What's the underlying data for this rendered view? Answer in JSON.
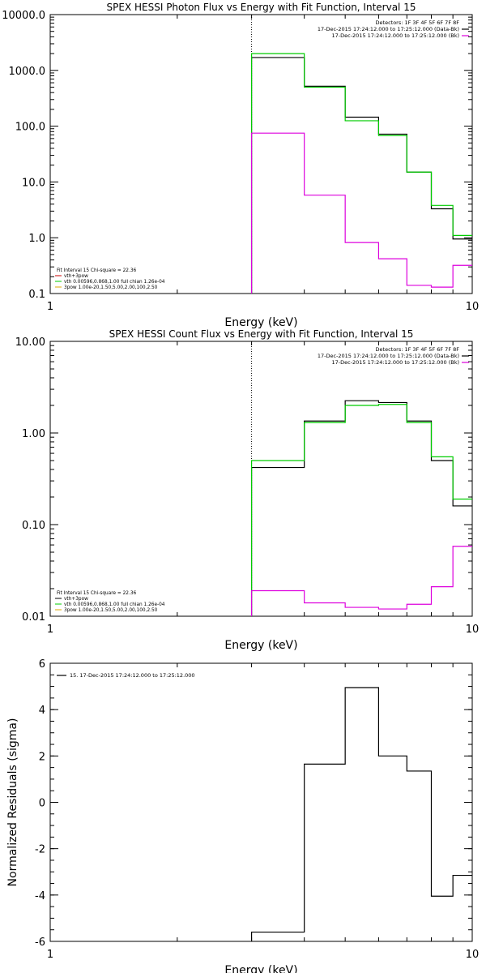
{
  "chart_data": [
    {
      "type": "line",
      "step": true,
      "title": "SPEX HESSI Photon Flux vs Energy with Fit Function, Interval 15",
      "xlabel": "Energy (keV)",
      "ylabel": "",
      "xscale": "log",
      "yscale": "log",
      "xlim": [
        1,
        10
      ],
      "ylim": [
        0.1,
        10000
      ],
      "xticks": [
        1,
        10
      ],
      "xtick_labels": [
        "1",
        "10"
      ],
      "yticks": [
        0.1,
        1,
        10,
        100,
        1000,
        10000
      ],
      "ytick_labels": [
        "0.1",
        "1.0",
        "10.0",
        "100.0",
        "1000.0",
        "10000.0"
      ],
      "marker_line_x": 3,
      "legend_position": "top-right",
      "legend": [
        "Detectors: 1F 3F 4F 5F 6F 7F 8F",
        "17-Dec-2015 17:24:12.000 to 17:25:12.000 (Data-Bk)",
        "17-Dec-2015 17:24:12.000 to 17:25:12.000 (Bk)"
      ],
      "fit_text_position": "bottom-left",
      "fit_text": [
        "Fit Interval 15   Chi-square = 22.36",
        "vth+3pow",
        "vth 0.00596,0.868,1.00   full chian 1.26e-04",
        "3pow 1.00e-20,1.50,5.00,2.00,100,2.50"
      ],
      "fit_text_colors": [
        "#000000",
        "#cc0000",
        "#00cc00",
        "#ddaa00"
      ],
      "bin_edges": [
        3,
        4,
        5,
        6,
        7,
        8,
        9,
        10
      ],
      "series": [
        {
          "name": "17-Dec-2015 17:24:12.000 to 17:25:12.000 (Data-Bk)",
          "color": "#000000",
          "values": [
            1700,
            520,
            145,
            72,
            15,
            3.3,
            0.95
          ]
        },
        {
          "color": "#00cc00",
          "values": [
            2000,
            500,
            125,
            68,
            15,
            3.8,
            1.1
          ]
        },
        {
          "name": "17-Dec-2015 17:24:12.000 to 17:25:12.000 (Bk)",
          "color": "#dd00dd",
          "values": [
            75,
            5.8,
            0.82,
            0.42,
            0.14,
            0.13,
            0.32
          ]
        }
      ]
    },
    {
      "type": "line",
      "step": true,
      "title": "SPEX HESSI Count Flux vs Energy with Fit Function, Interval 15",
      "xlabel": "Energy (keV)",
      "ylabel": "",
      "xscale": "log",
      "yscale": "log",
      "xlim": [
        1,
        10
      ],
      "ylim": [
        0.01,
        10
      ],
      "xticks": [
        1,
        10
      ],
      "xtick_labels": [
        "1",
        "10"
      ],
      "yticks": [
        0.01,
        0.1,
        1,
        10
      ],
      "ytick_labels": [
        "0.01",
        "0.10",
        "1.00",
        "10.00"
      ],
      "marker_line_x": 3,
      "legend_position": "top-right",
      "legend": [
        "Detectors: 1F 3F 4F 5F 6F 7F 8F",
        "17-Dec-2015 17:24:12.000 to 17:25:12.000 (Data-Bk)",
        "17-Dec-2015 17:24:12.000 to 17:25:12.000 (Bk)"
      ],
      "fit_text_position": "bottom-left",
      "fit_text": [
        "Fit Interval 15   Chi-square = 22.36",
        "vth+3pow",
        "vth 0.00596,0.868,1.00   full chian 1.26e-04",
        "3pow 1.00e-20,1.50,5.00,2.00,100,2.50"
      ],
      "fit_text_colors": [
        "#000000",
        "#000000",
        "#00cc00",
        "#ddaa00"
      ],
      "bin_edges": [
        3,
        4,
        5,
        6,
        7,
        8,
        9,
        10
      ],
      "series": [
        {
          "name": "17-Dec-2015 17:24:12.000 to 17:25:12.000 (Data-Bk)",
          "color": "#000000",
          "values": [
            0.42,
            1.35,
            2.25,
            2.15,
            1.35,
            0.5,
            0.16
          ]
        },
        {
          "color": "#00cc00",
          "values": [
            0.5,
            1.3,
            2.0,
            2.05,
            1.3,
            0.55,
            0.19
          ]
        },
        {
          "name": "17-Dec-2015 17:24:12.000 to 17:25:12.000 (Bk)",
          "color": "#dd00dd",
          "values": [
            0.019,
            0.014,
            0.0125,
            0.012,
            0.0135,
            0.021,
            0.058
          ]
        }
      ]
    },
    {
      "type": "line",
      "step": true,
      "title": "",
      "xlabel": "Energy (keV)",
      "ylabel": "Normalized Residuals (sigma)",
      "xscale": "log",
      "yscale": "linear",
      "xlim": [
        1,
        10
      ],
      "ylim": [
        -6,
        6
      ],
      "xticks": [
        1,
        10
      ],
      "xtick_labels": [
        "1",
        "10"
      ],
      "yticks": [
        -6,
        -4,
        -2,
        0,
        2,
        4,
        6
      ],
      "ytick_labels": [
        "-6",
        "-4",
        "-2",
        "0",
        "2",
        "4",
        "6"
      ],
      "legend_position": "top-left",
      "legend": [
        "15. 17-Dec-2015 17:24:12.000 to 17:25:12.000"
      ],
      "bin_edges": [
        3,
        4,
        5,
        6,
        7,
        8,
        9,
        10
      ],
      "series": [
        {
          "name": "15. 17-Dec-2015 17:24:12.000 to 17:25:12.000",
          "color": "#000000",
          "values": [
            -5.6,
            1.65,
            4.95,
            2.0,
            1.35,
            -4.05,
            -3.15
          ]
        }
      ]
    }
  ]
}
